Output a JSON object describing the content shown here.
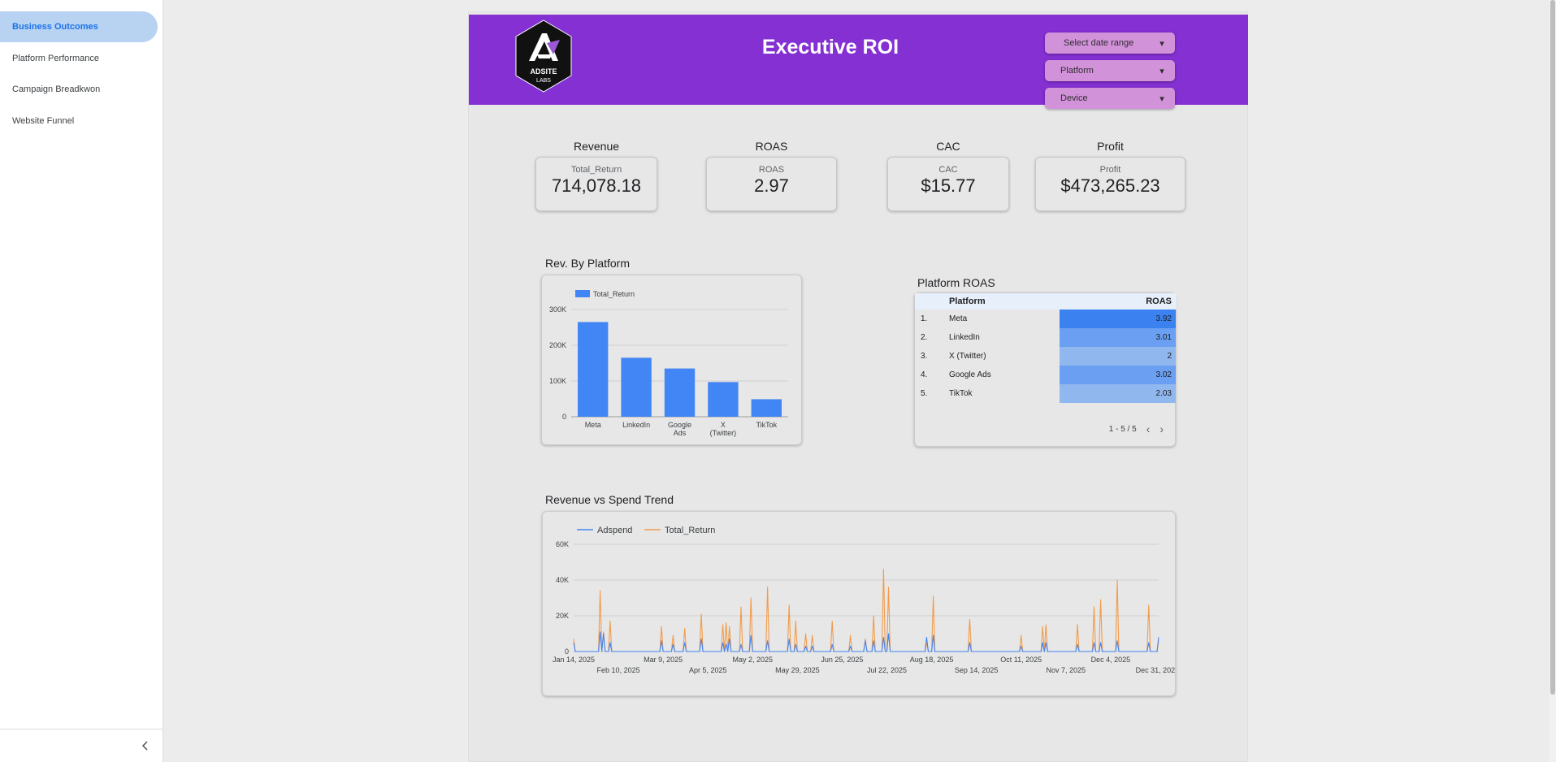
{
  "sidebar": {
    "items": [
      {
        "label": "Business Outcomes",
        "active": true
      },
      {
        "label": "Platform Performance",
        "active": false
      },
      {
        "label": "Campaign Breadkwon",
        "active": false
      },
      {
        "label": "Website Funnel",
        "active": false
      }
    ],
    "collapse_icon": "chevron-left-icon"
  },
  "header": {
    "title": "Executive ROI",
    "logo_text_1": "ADSITE",
    "logo_text_2": "LABS",
    "controls": [
      {
        "label": "Select date range"
      },
      {
        "label": "Platform"
      },
      {
        "label": "Device"
      }
    ],
    "accent_color": "#8530d3"
  },
  "kpis": [
    {
      "title": "Revenue",
      "sub": "Total_Return",
      "value": "714,078.18"
    },
    {
      "title": "ROAS",
      "sub": "ROAS",
      "value": "2.97"
    },
    {
      "title": "CAC",
      "sub": "CAC",
      "value": "$15.77"
    },
    {
      "title": "Profit",
      "sub": "Profit",
      "value": "$473,265.23"
    }
  ],
  "bar_section_title": "Rev. By Platform",
  "table": {
    "title": "Platform ROAS",
    "columns": [
      "Platform",
      "ROAS"
    ],
    "rows": [
      {
        "index": "1.",
        "platform": "Meta",
        "roas": "3.92"
      },
      {
        "index": "2.",
        "platform": "LinkedIn",
        "roas": "3.01"
      },
      {
        "index": "3.",
        "platform": "X (Twitter)",
        "roas": "2"
      },
      {
        "index": "4.",
        "platform": "Google Ads",
        "roas": "3.02"
      },
      {
        "index": "5.",
        "platform": "TikTok",
        "roas": "2.03"
      }
    ],
    "pager": "1 - 5 / 5"
  },
  "trend_section_title": "Revenue vs Spend Trend",
  "chart_data": [
    {
      "type": "bar",
      "title": "Rev. By Platform",
      "legend": [
        "Total_Return"
      ],
      "legend_position": "top-left",
      "categories": [
        "Meta",
        "LinkedIn",
        "Google Ads",
        "X (Twitter)",
        "TikTok"
      ],
      "category_lines": [
        [
          "Meta"
        ],
        [
          "LinkedIn"
        ],
        [
          "Google",
          "Ads"
        ],
        [
          "X",
          "(Twitter)"
        ],
        [
          "TikTok"
        ]
      ],
      "series": [
        {
          "name": "Total_Return",
          "values": [
            265000,
            165000,
            135000,
            97000,
            49000
          ],
          "color": "#4285f4"
        }
      ],
      "yticks": [
        0,
        100000,
        200000,
        300000
      ],
      "ytick_labels": [
        "0",
        "100K",
        "200K",
        "300K"
      ],
      "ylim": [
        0,
        300000
      ],
      "grid": true
    },
    {
      "type": "line",
      "title": "Revenue vs Spend Trend",
      "legend": [
        "Adspend",
        "Total_Return"
      ],
      "legend_position": "top-left",
      "x_range": [
        "2025-01-14",
        "2026-01-02"
      ],
      "ylim": [
        0,
        60000
      ],
      "yticks": [
        0,
        20000,
        40000,
        60000
      ],
      "ytick_labels": [
        "0",
        "20K",
        "40K",
        "60K"
      ],
      "x_tick_labels_top": [
        "Jan 14, 2025",
        "Mar 9, 2025",
        "May 2, 2025",
        "Jun 25, 2025",
        "Aug 18, 2025",
        "Oct 11, 2025",
        "Dec 4, 2025"
      ],
      "x_tick_labels_bottom": [
        "Feb 10, 2025",
        "Apr 5, 2025",
        "May 29, 2025",
        "Jul 22, 2025",
        "Sep 14, 2025",
        "Nov 7, 2025",
        "Dec 31, 202"
      ],
      "x_tick_dates_top": [
        "2025-01-14",
        "2025-03-09",
        "2025-05-02",
        "2025-06-25",
        "2025-08-18",
        "2025-10-11",
        "2025-12-04"
      ],
      "x_tick_dates_bottom": [
        "2025-02-10",
        "2025-04-05",
        "2025-05-29",
        "2025-07-22",
        "2025-09-14",
        "2025-11-07",
        "2025-12-31"
      ],
      "series": [
        {
          "name": "Adspend",
          "color": "#4285f4",
          "points": [
            {
              "x": "2025-01-14",
              "y": 5000
            },
            {
              "x": "2025-01-30",
              "y": 11000
            },
            {
              "x": "2025-02-01",
              "y": 10000
            },
            {
              "x": "2025-02-05",
              "y": 5000
            },
            {
              "x": "2025-03-08",
              "y": 6000
            },
            {
              "x": "2025-03-15",
              "y": 4000
            },
            {
              "x": "2025-03-22",
              "y": 5000
            },
            {
              "x": "2025-04-01",
              "y": 7000
            },
            {
              "x": "2025-04-14",
              "y": 5000
            },
            {
              "x": "2025-04-16",
              "y": 4000
            },
            {
              "x": "2025-04-18",
              "y": 7000
            },
            {
              "x": "2025-04-25",
              "y": 4000
            },
            {
              "x": "2025-05-01",
              "y": 9000
            },
            {
              "x": "2025-05-11",
              "y": 6000
            },
            {
              "x": "2025-05-24",
              "y": 7000
            },
            {
              "x": "2025-05-28",
              "y": 4000
            },
            {
              "x": "2025-06-03",
              "y": 3000
            },
            {
              "x": "2025-06-07",
              "y": 3000
            },
            {
              "x": "2025-06-19",
              "y": 4000
            },
            {
              "x": "2025-06-30",
              "y": 3000
            },
            {
              "x": "2025-07-09",
              "y": 6000
            },
            {
              "x": "2025-07-14",
              "y": 6000
            },
            {
              "x": "2025-07-20",
              "y": 8000
            },
            {
              "x": "2025-07-23",
              "y": 10000
            },
            {
              "x": "2025-08-15",
              "y": 8000
            },
            {
              "x": "2025-08-19",
              "y": 9000
            },
            {
              "x": "2025-09-10",
              "y": 5000
            },
            {
              "x": "2025-10-11",
              "y": 3000
            },
            {
              "x": "2025-10-24",
              "y": 5000
            },
            {
              "x": "2025-10-26",
              "y": 5000
            },
            {
              "x": "2025-11-14",
              "y": 4000
            },
            {
              "x": "2025-11-24",
              "y": 5000
            },
            {
              "x": "2025-11-28",
              "y": 5000
            },
            {
              "x": "2025-12-08",
              "y": 6000
            },
            {
              "x": "2025-12-27",
              "y": 5000
            },
            {
              "x": "2026-01-02",
              "y": 8000
            }
          ]
        },
        {
          "name": "Total_Return",
          "color": "#f29b4a",
          "points": [
            {
              "x": "2025-01-14",
              "y": 7000
            },
            {
              "x": "2025-01-30",
              "y": 34000
            },
            {
              "x": "2025-02-01",
              "y": 11000
            },
            {
              "x": "2025-02-05",
              "y": 17000
            },
            {
              "x": "2025-03-08",
              "y": 14000
            },
            {
              "x": "2025-03-15",
              "y": 9000
            },
            {
              "x": "2025-03-22",
              "y": 13000
            },
            {
              "x": "2025-04-01",
              "y": 21000
            },
            {
              "x": "2025-04-14",
              "y": 15000
            },
            {
              "x": "2025-04-16",
              "y": 16000
            },
            {
              "x": "2025-04-18",
              "y": 14000
            },
            {
              "x": "2025-04-25",
              "y": 25000
            },
            {
              "x": "2025-05-01",
              "y": 30000
            },
            {
              "x": "2025-05-11",
              "y": 36000
            },
            {
              "x": "2025-05-24",
              "y": 26000
            },
            {
              "x": "2025-05-28",
              "y": 17000
            },
            {
              "x": "2025-06-03",
              "y": 10000
            },
            {
              "x": "2025-06-07",
              "y": 9000
            },
            {
              "x": "2025-06-19",
              "y": 17000
            },
            {
              "x": "2025-06-30",
              "y": 9000
            },
            {
              "x": "2025-07-09",
              "y": 7000
            },
            {
              "x": "2025-07-14",
              "y": 20000
            },
            {
              "x": "2025-07-20",
              "y": 46000
            },
            {
              "x": "2025-07-23",
              "y": 36000
            },
            {
              "x": "2025-08-15",
              "y": 5000
            },
            {
              "x": "2025-08-19",
              "y": 31000
            },
            {
              "x": "2025-09-10",
              "y": 18000
            },
            {
              "x": "2025-10-11",
              "y": 9000
            },
            {
              "x": "2025-10-24",
              "y": 14000
            },
            {
              "x": "2025-10-26",
              "y": 15000
            },
            {
              "x": "2025-11-14",
              "y": 15000
            },
            {
              "x": "2025-11-24",
              "y": 25000
            },
            {
              "x": "2025-11-28",
              "y": 29000
            },
            {
              "x": "2025-12-08",
              "y": 40000
            },
            {
              "x": "2025-12-27",
              "y": 26000
            },
            {
              "x": "2026-01-02",
              "y": 6000
            }
          ]
        }
      ],
      "grid": true
    }
  ]
}
